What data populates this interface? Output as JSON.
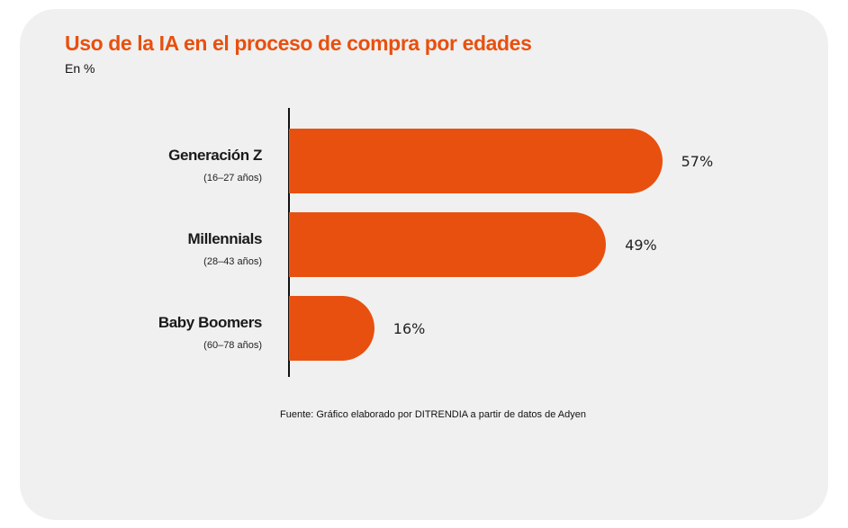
{
  "chart_data": {
    "type": "bar",
    "orientation": "horizontal",
    "title": "Uso de la IA en el proceso de compra por edades",
    "subtitle": "En %",
    "categories": [
      {
        "name": "Generación Z",
        "range": "(16–27 años)"
      },
      {
        "name": "Millennials",
        "range": "(28–43 años)"
      },
      {
        "name": "Baby Boomers",
        "range": "(60–78 años)"
      }
    ],
    "values": [
      57,
      49,
      16
    ],
    "value_labels": [
      "57%",
      "49%",
      "16%"
    ],
    "source": "Fuente: Gráfico elaborado por DITRENDIA a partir de datos de Adyen",
    "grid": false,
    "colors": {
      "bar": "#e8500f",
      "title": "#e8500f",
      "background": "#f0f0f0"
    }
  }
}
